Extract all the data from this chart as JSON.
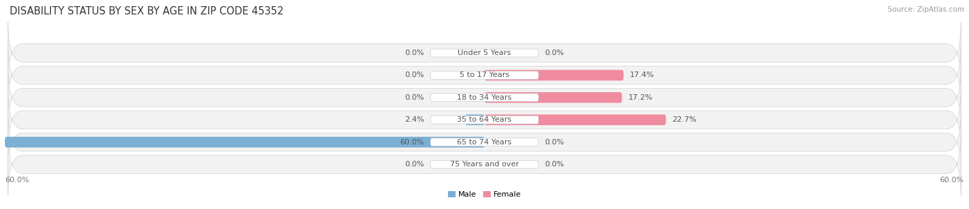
{
  "title": "DISABILITY STATUS BY SEX BY AGE IN ZIP CODE 45352",
  "source": "Source: ZipAtlas.com",
  "categories": [
    "Under 5 Years",
    "5 to 17 Years",
    "18 to 34 Years",
    "35 to 64 Years",
    "65 to 74 Years",
    "75 Years and over"
  ],
  "male_values": [
    0.0,
    0.0,
    0.0,
    2.4,
    60.0,
    0.0
  ],
  "female_values": [
    0.0,
    17.4,
    17.2,
    22.7,
    0.0,
    0.0
  ],
  "male_color": "#7bafd4",
  "female_color": "#f08ca0",
  "row_bg_color": "#ebebeb",
  "axis_max": 60.0,
  "title_fontsize": 10.5,
  "label_fontsize": 8.0,
  "tick_fontsize": 8.0,
  "source_fontsize": 7.5,
  "center_label_color": "#555555",
  "value_label_color": "#555555"
}
